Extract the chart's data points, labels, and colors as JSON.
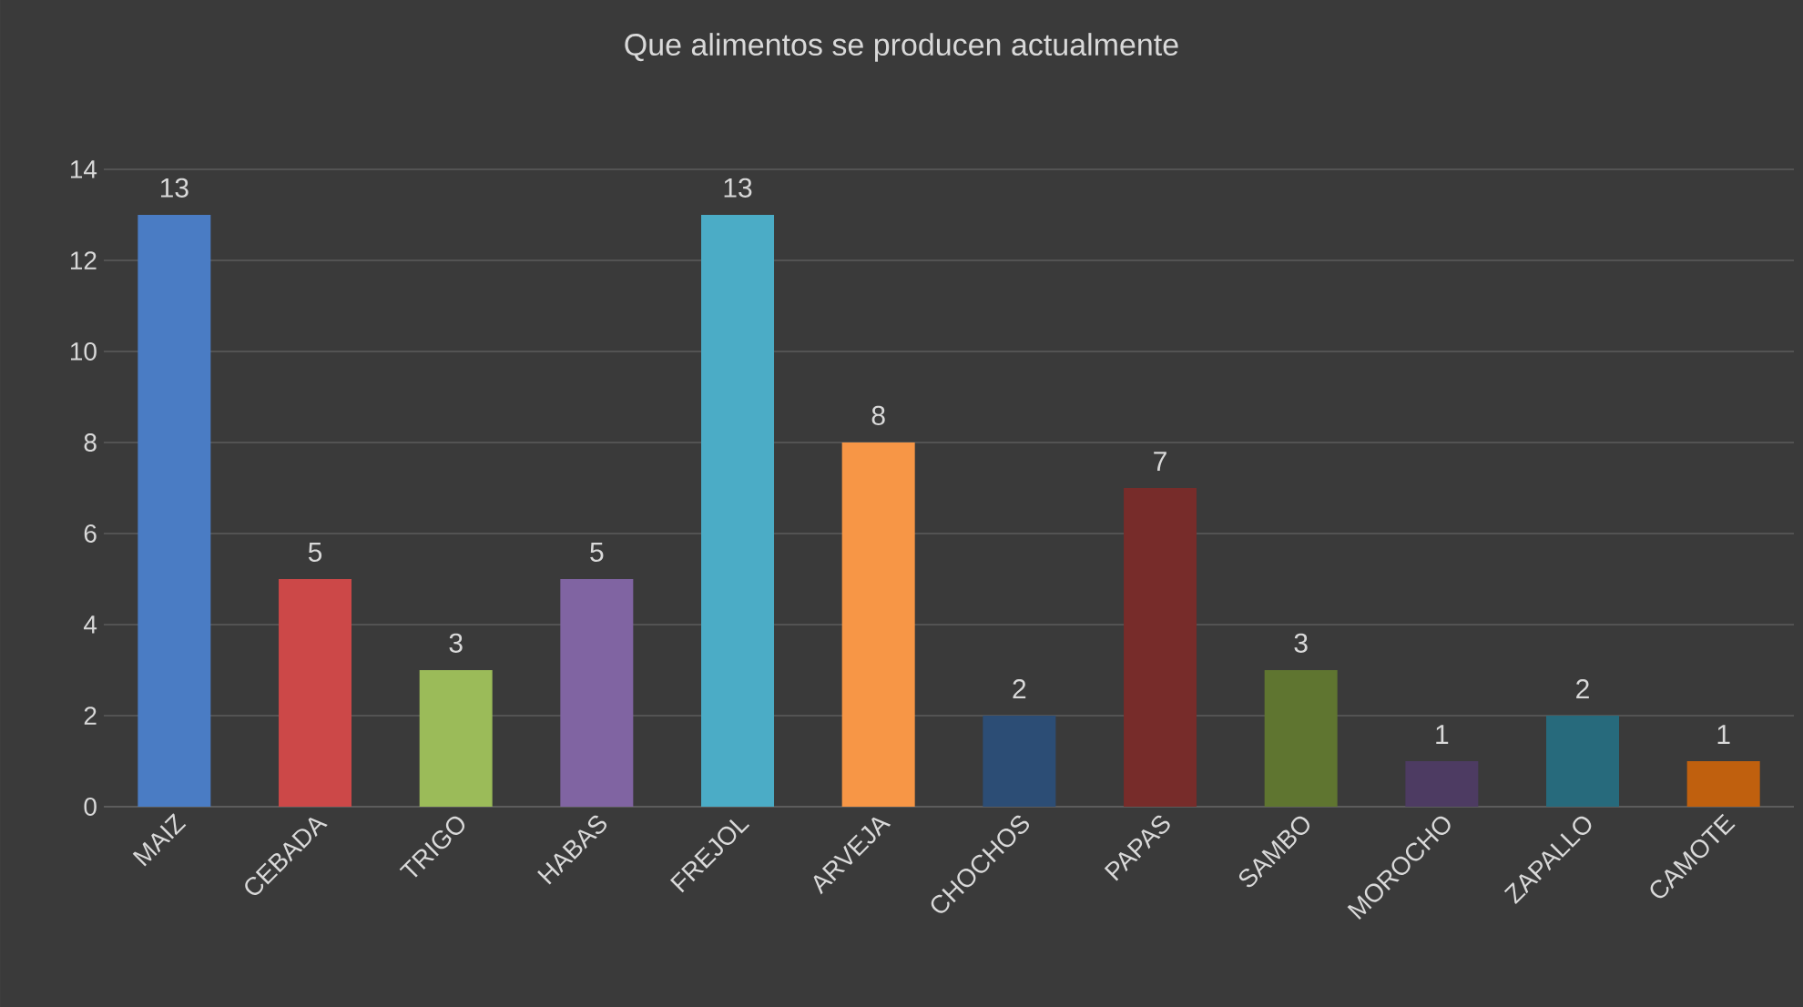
{
  "chart_data": {
    "type": "bar",
    "title": "Que alimentos se producen actualmente",
    "categories": [
      "MAIZ",
      "CEBADA",
      "TRIGO",
      "HABAS",
      "FREJOL",
      "ARVEJA",
      "CHOCHOS",
      "PAPAS",
      "SAMBO",
      "MOROCHO",
      "ZAPALLO",
      "CAMOTE"
    ],
    "values": [
      13,
      5,
      3,
      5,
      13,
      8,
      2,
      7,
      3,
      1,
      2,
      1
    ],
    "colors": [
      "#4a7cc4",
      "#cc4848",
      "#9bbb59",
      "#8064a2",
      "#4bacc6",
      "#f79646",
      "#2c4d75",
      "#772c2a",
      "#5f7530",
      "#4d3b62",
      "#276a7c",
      "#c0600e"
    ],
    "ylim": [
      0,
      14
    ],
    "yticks": [
      0,
      2,
      4,
      6,
      8,
      10,
      12,
      14
    ],
    "grid": "y",
    "data_labels": true
  }
}
